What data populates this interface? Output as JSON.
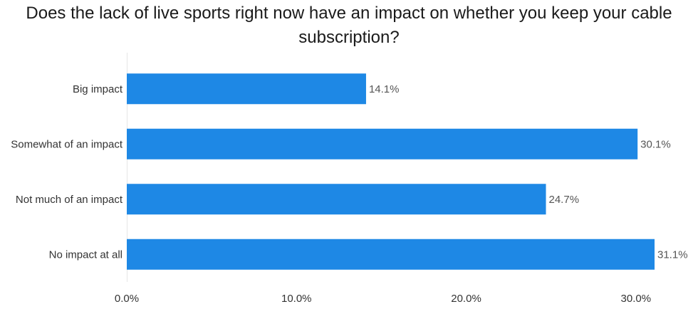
{
  "chart_data": {
    "type": "bar",
    "orientation": "horizontal",
    "title": "Does the lack of live sports right now have an impact on whether you keep your cable subscription?",
    "categories": [
      "Big impact",
      "Somewhat of an impact",
      "Not much of an impact",
      "No impact at all"
    ],
    "values": [
      14.1,
      30.1,
      24.7,
      31.1
    ],
    "value_labels": [
      "14.1%",
      "30.1%",
      "24.7%",
      "31.1%"
    ],
    "xlim": [
      0,
      31.1
    ],
    "xticks": [
      0,
      10,
      20,
      30
    ],
    "xtick_labels": [
      "0.0%",
      "10.0%",
      "20.0%",
      "30.0%"
    ],
    "xlabel": "",
    "ylabel": "",
    "grid": false,
    "bar_color": "#1e88e5"
  }
}
